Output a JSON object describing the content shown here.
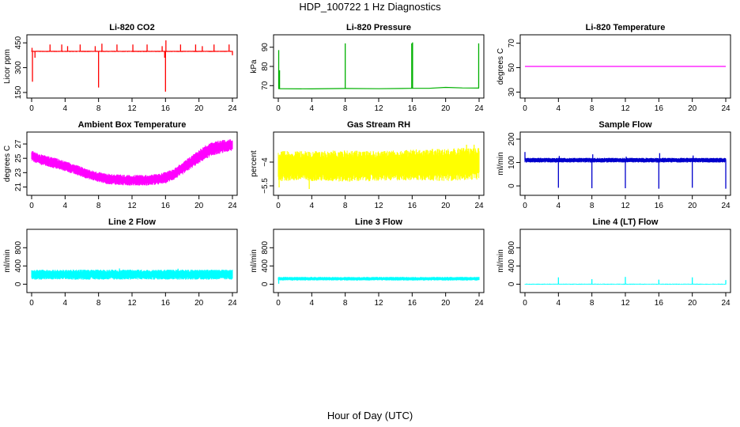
{
  "figure": {
    "title": "HDP_100722  1 Hz Diagnostics",
    "xlabel": "Hour of Day (UTC)"
  },
  "chart_data": [
    {
      "type": "line",
      "title": "Li-820 CO2",
      "ylabel": "Licor ppm",
      "color": "#ff0000",
      "xlim": [
        0,
        24
      ],
      "xticks": [
        0,
        4,
        8,
        12,
        16,
        20,
        24
      ],
      "ylim": [
        145,
        470
      ],
      "yticks": [
        150,
        300,
        450
      ],
      "series": [
        {
          "style": "band",
          "x": [
            0,
            24
          ],
          "low": [
            395,
            395
          ],
          "high": [
            402,
            402
          ]
        }
      ],
      "spikes": [
        {
          "x": 0.1,
          "to": 215
        },
        {
          "x": 0.05,
          "to": 420
        },
        {
          "x": 0.4,
          "to": 360
        },
        {
          "x": 2.2,
          "to": 440
        },
        {
          "x": 3.6,
          "to": 440
        },
        {
          "x": 4.3,
          "to": 430
        },
        {
          "x": 5.8,
          "to": 440
        },
        {
          "x": 7.6,
          "to": 430
        },
        {
          "x": 8.0,
          "to": 180
        },
        {
          "x": 8.4,
          "to": 445
        },
        {
          "x": 10.2,
          "to": 440
        },
        {
          "x": 12.1,
          "to": 440
        },
        {
          "x": 13.8,
          "to": 440
        },
        {
          "x": 15.6,
          "to": 430
        },
        {
          "x": 15.9,
          "to": 360
        },
        {
          "x": 16.0,
          "to": 155
        },
        {
          "x": 16.05,
          "to": 465
        },
        {
          "x": 17.8,
          "to": 440
        },
        {
          "x": 19.6,
          "to": 440
        },
        {
          "x": 20.4,
          "to": 430
        },
        {
          "x": 21.8,
          "to": 440
        },
        {
          "x": 23.6,
          "to": 440
        },
        {
          "x": 24.0,
          "to": 375
        }
      ]
    },
    {
      "type": "line",
      "title": "Li-820 Pressure",
      "ylabel": "kPa",
      "color": "#00b000",
      "xlim": [
        0,
        24
      ],
      "xticks": [
        0,
        4,
        8,
        12,
        16,
        20,
        24
      ],
      "ylim": [
        66,
        94
      ],
      "yticks": [
        70,
        80,
        90
      ],
      "series": [
        {
          "style": "line",
          "x": [
            0,
            4,
            8,
            12,
            16,
            18,
            20,
            22,
            24
          ],
          "y": [
            68.4,
            68.3,
            68.5,
            68.4,
            68.6,
            68.6,
            69.1,
            68.8,
            68.7
          ]
        }
      ],
      "spikes": [
        {
          "x": 0.05,
          "to": 88.5
        },
        {
          "x": 0.15,
          "to": 78
        },
        {
          "x": 8.0,
          "to": 92
        },
        {
          "x": 15.95,
          "to": 92
        },
        {
          "x": 16.05,
          "to": 92.5
        },
        {
          "x": 23.95,
          "to": 92
        }
      ]
    },
    {
      "type": "line",
      "title": "Li-820 Temperature",
      "ylabel": "degrees C",
      "color": "#ff00ff",
      "xlim": [
        0,
        24
      ],
      "xticks": [
        0,
        4,
        8,
        12,
        16,
        20,
        24
      ],
      "ylim": [
        29,
        73
      ],
      "yticks": [
        30,
        50,
        70
      ],
      "series": [
        {
          "style": "line",
          "x": [
            0,
            24
          ],
          "y": [
            51,
            51
          ]
        }
      ],
      "spikes": []
    },
    {
      "type": "area",
      "title": "Ambient Box Temperature",
      "ylabel": "degrees C",
      "color": "#ff00ff",
      "xlim": [
        0,
        24
      ],
      "xticks": [
        0,
        4,
        8,
        12,
        16,
        20,
        24
      ],
      "ylim": [
        20.5,
        28
      ],
      "yticks": [
        21,
        23,
        25,
        27
      ],
      "series": [
        {
          "style": "band",
          "x": [
            0,
            1,
            2,
            3,
            4,
            5,
            6,
            7,
            8,
            9,
            10,
            11,
            12,
            13,
            14,
            15,
            16,
            17,
            18,
            19,
            20,
            21,
            22,
            23,
            24
          ],
          "low": [
            24.6,
            24.1,
            23.8,
            23.5,
            23.2,
            22.8,
            22.4,
            22.0,
            21.7,
            21.4,
            21.3,
            21.2,
            21.2,
            21.2,
            21.2,
            21.3,
            21.5,
            22.0,
            22.7,
            23.5,
            24.3,
            25.0,
            25.5,
            25.8,
            26.0
          ],
          "high": [
            26.1,
            25.6,
            25.3,
            25.0,
            24.6,
            24.2,
            23.8,
            23.4,
            23.1,
            22.9,
            22.8,
            22.7,
            22.7,
            22.7,
            22.7,
            22.8,
            23.1,
            23.6,
            24.4,
            25.3,
            26.2,
            27.0,
            27.4,
            27.6,
            27.7
          ]
        }
      ],
      "spikes": []
    },
    {
      "type": "area",
      "title": "Gas Stream RH",
      "ylabel": "percent",
      "color": "#ffff00",
      "xlim": [
        0,
        24
      ],
      "xticks": [
        0,
        4,
        8,
        12,
        16,
        20,
        24
      ],
      "ylim": [
        -5.8,
        -2.4
      ],
      "yticks": [
        -4.0,
        -5.5
      ],
      "series": [
        {
          "style": "band",
          "x": [
            0,
            4,
            8,
            12,
            16,
            20,
            24
          ],
          "low": [
            -5.2,
            -5.2,
            -5.25,
            -5.2,
            -5.15,
            -5.2,
            -5.1
          ],
          "high": [
            -3.3,
            -3.3,
            -3.25,
            -3.3,
            -3.2,
            -3.15,
            -3.05
          ]
        }
      ],
      "spikes": [
        {
          "x": 0.1,
          "to": -5.6
        },
        {
          "x": 3.7,
          "to": -5.7
        },
        {
          "x": 22.5,
          "to": -2.9
        },
        {
          "x": 23.4,
          "to": -2.9
        }
      ]
    },
    {
      "type": "line",
      "title": "Sample Flow",
      "ylabel": "ml/min",
      "color": "#0000cc",
      "xlim": [
        0,
        24
      ],
      "xticks": [
        0,
        4,
        8,
        12,
        16,
        20,
        24
      ],
      "ylim": [
        -20,
        210
      ],
      "yticks": [
        0,
        100,
        200
      ],
      "series": [
        {
          "style": "band",
          "x": [
            0,
            24
          ],
          "low": [
            100,
            100
          ],
          "high": [
            120,
            120
          ]
        }
      ],
      "spikes": [
        {
          "x": 0.0,
          "to": 145
        },
        {
          "x": 4.0,
          "to": -8
        },
        {
          "x": 4.1,
          "to": 128
        },
        {
          "x": 8.0,
          "to": -10
        },
        {
          "x": 8.1,
          "to": 135
        },
        {
          "x": 12.0,
          "to": -10
        },
        {
          "x": 12.1,
          "to": 125
        },
        {
          "x": 16.0,
          "to": -12
        },
        {
          "x": 16.1,
          "to": 140
        },
        {
          "x": 20.0,
          "to": -8
        },
        {
          "x": 20.1,
          "to": 130
        },
        {
          "x": 24.0,
          "to": -12
        }
      ]
    },
    {
      "type": "area",
      "title": "Line 2 Flow",
      "ylabel": "ml/min",
      "color": "#00ffff",
      "xlim": [
        0,
        24
      ],
      "xticks": [
        0,
        4,
        8,
        12,
        16,
        20,
        24
      ],
      "ylim": [
        -80,
        1100
      ],
      "yticks": [
        0,
        400,
        800
      ],
      "series": [
        {
          "style": "band",
          "x": [
            0,
            24
          ],
          "low": [
            100,
            100
          ],
          "high": [
            320,
            320
          ]
        }
      ],
      "spikes": [
        {
          "x": 10.5,
          "to": 345
        },
        {
          "x": 17.5,
          "to": 340
        }
      ]
    },
    {
      "type": "area",
      "title": "Line 3 Flow",
      "ylabel": "ml/min",
      "color": "#00ffff",
      "xlim": [
        0,
        24
      ],
      "xticks": [
        0,
        4,
        8,
        12,
        16,
        20,
        24
      ],
      "ylim": [
        -80,
        1100
      ],
      "yticks": [
        0,
        400,
        800
      ],
      "series": [
        {
          "style": "band",
          "x": [
            0,
            24
          ],
          "low": [
            80,
            80
          ],
          "high": [
            160,
            160
          ]
        }
      ],
      "spikes": [
        {
          "x": 0.05,
          "to": 10
        }
      ]
    },
    {
      "type": "line",
      "title": "Line 4 (LT) Flow",
      "ylabel": "ml/min",
      "color": "#00ffff",
      "xlim": [
        0,
        24
      ],
      "xticks": [
        0,
        4,
        8,
        12,
        16,
        20,
        24
      ],
      "ylim": [
        -80,
        1100
      ],
      "yticks": [
        0,
        400,
        800
      ],
      "series": [
        {
          "style": "band",
          "x": [
            0,
            24
          ],
          "low": [
            -10,
            -10
          ],
          "high": [
            10,
            10
          ]
        }
      ],
      "spikes": [
        {
          "x": 4.0,
          "to": 150
        },
        {
          "x": 8.0,
          "to": 110
        },
        {
          "x": 12.0,
          "to": 160
        },
        {
          "x": 16.0,
          "to": 100
        },
        {
          "x": 20.0,
          "to": 150
        },
        {
          "x": 24.0,
          "to": 90
        }
      ]
    }
  ]
}
